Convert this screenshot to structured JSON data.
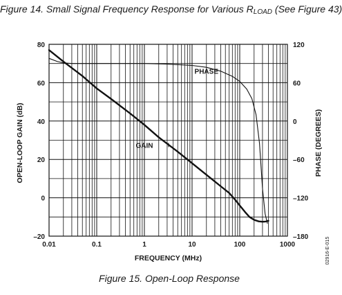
{
  "captions": {
    "top_prefix": "Figure 14. Small Signal Frequency Response for Various R",
    "top_sub": "LOAD",
    "top_suffix": " (See Figure 43)",
    "bottom": "Figure 15. Open-Loop Response"
  },
  "figure_code": "02916-E-015",
  "colors": {
    "line": "#111111",
    "grid": "#111111",
    "background": "#ffffff"
  },
  "chart_data": {
    "type": "line",
    "xlabel": "FREQUENCY (MHz)",
    "x_scale": "log",
    "xlim": [
      0.01,
      1000
    ],
    "x_ticks": [
      0.01,
      0.1,
      1,
      10,
      100,
      1000
    ],
    "x_tick_labels": [
      "0.01",
      "0.1",
      "1",
      "10",
      "100",
      "1000"
    ],
    "ylabel_left": "OPEN-LOOP GAIN (dB)",
    "ylim_left": [
      -20,
      80
    ],
    "y_ticks_left": [
      -20,
      0,
      20,
      40,
      60,
      80
    ],
    "y_tick_labels_left": [
      "–20",
      "0",
      "20",
      "40",
      "60",
      "80"
    ],
    "ylabel_right": "PHASE (DEGREES)",
    "ylim_right": [
      -180,
      120
    ],
    "y_ticks_right": [
      -180,
      -120,
      -60,
      0,
      60,
      120
    ],
    "y_tick_labels_right": [
      "–180",
      "–120",
      "–60",
      "0",
      "60",
      "120"
    ],
    "grid": true,
    "series": [
      {
        "name": "GAIN",
        "axis": "left",
        "x": [
          0.01,
          0.02,
          0.05,
          0.1,
          0.2,
          0.5,
          1,
          2,
          5,
          10,
          20,
          40,
          60,
          80,
          100,
          130,
          160,
          200,
          250,
          300,
          350,
          400
        ],
        "values": [
          77,
          71,
          63.5,
          57,
          51.5,
          44,
          38,
          31.5,
          24,
          18,
          12,
          6,
          2.5,
          -1,
          -4,
          -7.5,
          -10,
          -11.5,
          -12.3,
          -12.5,
          -12.4,
          -12
        ]
      },
      {
        "name": "PHASE",
        "axis": "right",
        "x": [
          0.01,
          0.015,
          0.02,
          0.03,
          0.05,
          0.1,
          0.3,
          1,
          3,
          10,
          20,
          40,
          70,
          100,
          140,
          180,
          220,
          260,
          300,
          340,
          380
        ],
        "values": [
          98,
          93,
          91,
          90,
          90,
          90,
          90,
          90,
          89,
          87,
          84,
          78,
          70,
          62,
          50,
          35,
          10,
          -35,
          -105,
          -145,
          -160
        ]
      }
    ],
    "annotations": [
      {
        "text": "PHASE",
        "series": "PHASE"
      },
      {
        "text": "GAIN",
        "series": "GAIN"
      }
    ]
  }
}
